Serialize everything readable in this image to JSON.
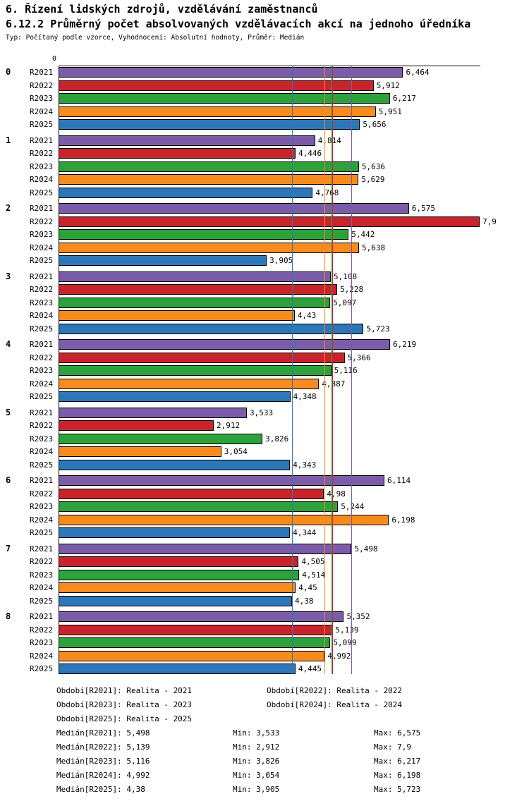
{
  "header": {
    "title": "6. Řízení lidských zdrojů, vzdělávání zaměstnanců",
    "subtitle": "6.12.2 Průměrný počet absolvovaných vzdělávacích akcí na jednoho úředníka",
    "type_line": "Typ: Počítaný podle vzorce, Vyhodnocení: Absolutní hodnoty, Průměr: Medián"
  },
  "chart_data": {
    "type": "bar",
    "orientation": "horizontal",
    "title": "6.12.2 Průměrný počet absolvovaných vzdělávacích akcí na jednoho úředníka",
    "axis": {
      "origin_label": "0",
      "min": 0,
      "max": 7.9,
      "gridlines": false
    },
    "series": [
      {
        "name": "R2021",
        "color": "#7b5ca8"
      },
      {
        "name": "R2022",
        "color": "#c9242c"
      },
      {
        "name": "R2023",
        "color": "#2da13a"
      },
      {
        "name": "R2024",
        "color": "#f68b1f"
      },
      {
        "name": "R2025",
        "color": "#2d76b8"
      }
    ],
    "groups": [
      {
        "label": "0",
        "values": [
          6.464,
          5.912,
          6.217,
          5.951,
          5.656
        ],
        "value_labels": [
          "6,464",
          "5,912",
          "6,217",
          "5,951",
          "5,656"
        ]
      },
      {
        "label": "1",
        "values": [
          4.814,
          4.446,
          5.636,
          5.629,
          4.768
        ],
        "value_labels": [
          "4,814",
          "4,446",
          "5,636",
          "5,629",
          "4,768"
        ]
      },
      {
        "label": "2",
        "values": [
          6.575,
          7.9,
          5.442,
          5.638,
          3.905
        ],
        "value_labels": [
          "6,575",
          "7,9",
          "5,442",
          "5,638",
          "3,905"
        ]
      },
      {
        "label": "3",
        "values": [
          5.108,
          5.228,
          5.097,
          4.43,
          5.723
        ],
        "value_labels": [
          "5,108",
          "5,228",
          "5,097",
          "4,43",
          "5,723"
        ]
      },
      {
        "label": "4",
        "values": [
          6.219,
          5.366,
          5.116,
          4.887,
          4.348
        ],
        "value_labels": [
          "6,219",
          "5,366",
          "5,116",
          "4,887",
          "4,348"
        ]
      },
      {
        "label": "5",
        "values": [
          3.533,
          2.912,
          3.826,
          3.054,
          4.343
        ],
        "value_labels": [
          "3,533",
          "2,912",
          "3,826",
          "3,054",
          "4,343"
        ]
      },
      {
        "label": "6",
        "values": [
          6.114,
          4.98,
          5.244,
          6.198,
          4.344
        ],
        "value_labels": [
          "6,114",
          "4,98",
          "5,244",
          "6,198",
          "4,344"
        ]
      },
      {
        "label": "7",
        "values": [
          5.498,
          4.505,
          4.514,
          4.45,
          4.38
        ],
        "value_labels": [
          "5,498",
          "4,505",
          "4,514",
          "4,45",
          "4,38"
        ]
      },
      {
        "label": "8",
        "values": [
          5.352,
          5.139,
          5.099,
          4.992,
          4.445
        ],
        "value_labels": [
          "5,352",
          "5,139",
          "5,099",
          "4,992",
          "4,445"
        ]
      }
    ],
    "median_lines": [
      {
        "series": "R2021",
        "value": 5.498
      },
      {
        "series": "R2022",
        "value": 5.139
      },
      {
        "series": "R2023",
        "value": 5.116
      },
      {
        "series": "R2024",
        "value": 4.992
      },
      {
        "series": "R2025",
        "value": 4.38
      }
    ]
  },
  "legend": {
    "periods": [
      {
        "text": "Období[R2021]: Realita - 2021"
      },
      {
        "text": "Období[R2022]: Realita - 2022"
      },
      {
        "text": "Období[R2023]: Realita - 2023"
      },
      {
        "text": "Období[R2024]: Realita - 2024"
      },
      {
        "text": "Období[R2025]: Realita - 2025"
      }
    ],
    "stats": [
      {
        "median": "Medián[R2021]: 5,498",
        "min": "Min: 3,533",
        "max": "Max: 6,575"
      },
      {
        "median": "Medián[R2022]: 5,139",
        "min": "Min: 2,912",
        "max": "Max: 7,9"
      },
      {
        "median": "Medián[R2023]: 5,116",
        "min": "Min: 3,826",
        "max": "Max: 6,217"
      },
      {
        "median": "Medián[R2024]: 4,992",
        "min": "Min: 3,054",
        "max": "Max: 6,198"
      },
      {
        "median": "Medián[R2025]: 4,38",
        "min": "Min: 3,905",
        "max": "Max: 5,723"
      }
    ]
  }
}
